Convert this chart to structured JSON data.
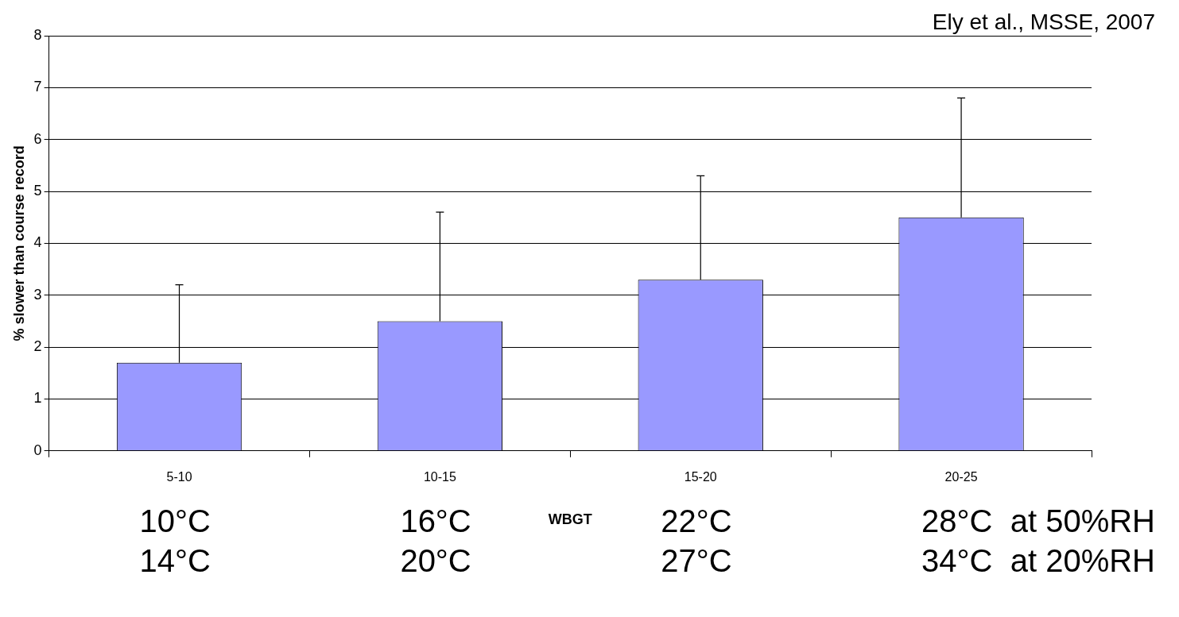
{
  "chart_data": {
    "type": "bar",
    "categories": [
      "5-10",
      "10-15",
      "15-20",
      "20-25"
    ],
    "values": [
      1.7,
      2.5,
      3.3,
      4.5
    ],
    "errors": [
      [
        1.7,
        3.2
      ],
      [
        2.5,
        4.6
      ],
      [
        3.3,
        5.3
      ],
      [
        4.5,
        6.8
      ]
    ],
    "color": "#9999ff",
    "ylabel": "% slower than course record",
    "xlabel": "WBGT",
    "ylim": [
      0,
      8
    ],
    "yticks": [
      0,
      1,
      2,
      3,
      4,
      5,
      6,
      7,
      8
    ],
    "grid": "y",
    "legend": false,
    "annotations": [
      "Ely et al., MSSE, 2007",
      "10°C",
      "16°C",
      "22°C",
      "28°C  at 50%RH",
      "14°C",
      "20°C",
      "27°C",
      "34°C  at 20%RH"
    ]
  }
}
